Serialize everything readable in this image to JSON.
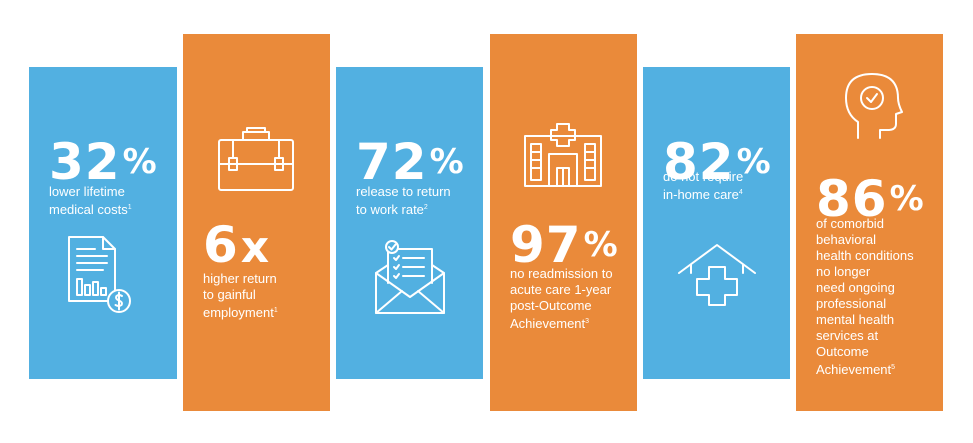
{
  "colors": {
    "blue": "#52b0e1",
    "orange": "#ea8a3a",
    "text": "#ffffff"
  },
  "cards": [
    {
      "value": "32",
      "suffix": "%",
      "line1": "lower lifetime",
      "line2": "medical costs",
      "note": "1",
      "icon": "document-chart-dollar-icon"
    },
    {
      "value": "6",
      "suffix": "x",
      "line1": "higher return",
      "line2": "to gainful",
      "line3": "employment",
      "note": "1",
      "icon": "briefcase-icon"
    },
    {
      "value": "72",
      "suffix": "%",
      "line1": "release to return",
      "line2": "to work rate",
      "note": "2",
      "icon": "envelope-checklist-icon"
    },
    {
      "value": "97",
      "suffix": "%",
      "line1": "no readmission to",
      "line2": "acute care 1-year",
      "line3": "post-Outcome",
      "line4": "Achievement",
      "note": "3",
      "icon": "hospital-icon"
    },
    {
      "value": "82",
      "suffix": "%",
      "line1": "do not require",
      "line2": "in-home care",
      "note": "4",
      "icon": "home-health-icon"
    },
    {
      "value": "86",
      "suffix": "%",
      "line1": "of comorbid",
      "line2": "behavioral",
      "line3": "health conditions",
      "line4": "no longer",
      "line5": "need ongoing",
      "line6": "professional",
      "line7": "mental health",
      "line8": "services at",
      "line9": "Outcome",
      "line10": "Achievement",
      "note": "5",
      "icon": "head-check-icon"
    }
  ]
}
